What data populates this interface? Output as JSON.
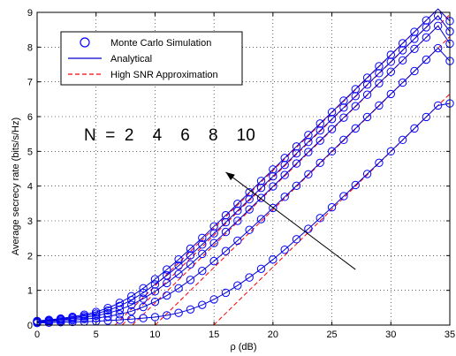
{
  "chart_data": {
    "type": "line",
    "xlabel": "ρ  (dB)",
    "ylabel": "Average secrecy rate (bits/s/Hz)",
    "xlim": [
      0,
      35
    ],
    "ylim": [
      0,
      9
    ],
    "xticks": [
      "0",
      "5",
      "10",
      "15",
      "20",
      "25",
      "30",
      "35"
    ],
    "yticks": [
      "0",
      "1",
      "2",
      "3",
      "4",
      "5",
      "6",
      "7",
      "8",
      "9"
    ],
    "grid": true,
    "legend_position": "top-left",
    "legend": [
      {
        "label": "Monte Carlo Simulation",
        "style": "circle",
        "color": "#0000ff"
      },
      {
        "label": "Analytical",
        "style": "solid",
        "color": "#0000cc"
      },
      {
        "label": "High SNR Approximation",
        "style": "dashed",
        "color": "#ff0000"
      }
    ],
    "annotation": {
      "text": "N  =  2    4    6    8    10",
      "arrow_from": [
        27,
        1.6
      ],
      "arrow_to": [
        16,
        4.4
      ]
    },
    "x": [
      0,
      1,
      2,
      3,
      4,
      5,
      6,
      7,
      8,
      9,
      10,
      11,
      12,
      13,
      14,
      15,
      16,
      17,
      18,
      19,
      20,
      21,
      22,
      23,
      24,
      25,
      26,
      27,
      28,
      29,
      30,
      31,
      32,
      33,
      34,
      35
    ],
    "series": [
      {
        "N": 2,
        "values": [
          0.06,
          0.07,
          0.08,
          0.09,
          0.1,
          0.11,
          0.13,
          0.15,
          0.17,
          0.2,
          0.23,
          0.28,
          0.35,
          0.45,
          0.58,
          0.74,
          0.93,
          1.14,
          1.37,
          1.62,
          1.89,
          2.17,
          2.47,
          2.77,
          3.08,
          3.39,
          3.71,
          4.03,
          4.35,
          4.67,
          5.0,
          5.33,
          5.66,
          5.99,
          6.32,
          6.38
        ]
      },
      {
        "N": 4,
        "values": [
          0.08,
          0.1,
          0.12,
          0.14,
          0.17,
          0.2,
          0.25,
          0.31,
          0.4,
          0.52,
          0.67,
          0.85,
          1.06,
          1.3,
          1.56,
          1.84,
          2.13,
          2.43,
          2.74,
          3.05,
          3.37,
          3.69,
          4.01,
          4.34,
          4.67,
          5.0,
          5.33,
          5.66,
          5.99,
          6.32,
          6.65,
          6.98,
          7.31,
          7.64,
          7.97,
          7.6
        ]
      },
      {
        "N": 6,
        "values": [
          0.1,
          0.12,
          0.15,
          0.18,
          0.22,
          0.27,
          0.34,
          0.44,
          0.58,
          0.76,
          0.97,
          1.21,
          1.47,
          1.75,
          2.05,
          2.36,
          2.68,
          3.0,
          3.33,
          3.66,
          3.99,
          4.32,
          4.65,
          4.98,
          5.31,
          5.64,
          5.97,
          6.3,
          6.63,
          6.96,
          7.29,
          7.62,
          7.95,
          8.28,
          8.61,
          8.1
        ]
      },
      {
        "N": 8,
        "values": [
          0.11,
          0.14,
          0.17,
          0.21,
          0.26,
          0.33,
          0.42,
          0.55,
          0.72,
          0.93,
          1.17,
          1.43,
          1.71,
          2.01,
          2.32,
          2.64,
          2.96,
          3.29,
          3.62,
          3.95,
          4.28,
          4.61,
          4.94,
          5.27,
          5.6,
          5.93,
          6.26,
          6.59,
          6.92,
          7.25,
          7.58,
          7.91,
          8.24,
          8.57,
          8.9,
          8.45
        ]
      },
      {
        "N": 10,
        "values": [
          0.12,
          0.15,
          0.19,
          0.24,
          0.3,
          0.38,
          0.49,
          0.64,
          0.83,
          1.06,
          1.32,
          1.6,
          1.89,
          2.2,
          2.51,
          2.84,
          3.16,
          3.49,
          3.82,
          4.15,
          4.48,
          4.81,
          5.14,
          5.47,
          5.8,
          6.13,
          6.46,
          6.79,
          7.12,
          7.45,
          7.78,
          8.11,
          8.44,
          8.77,
          9.1,
          8.75
        ]
      }
    ]
  }
}
